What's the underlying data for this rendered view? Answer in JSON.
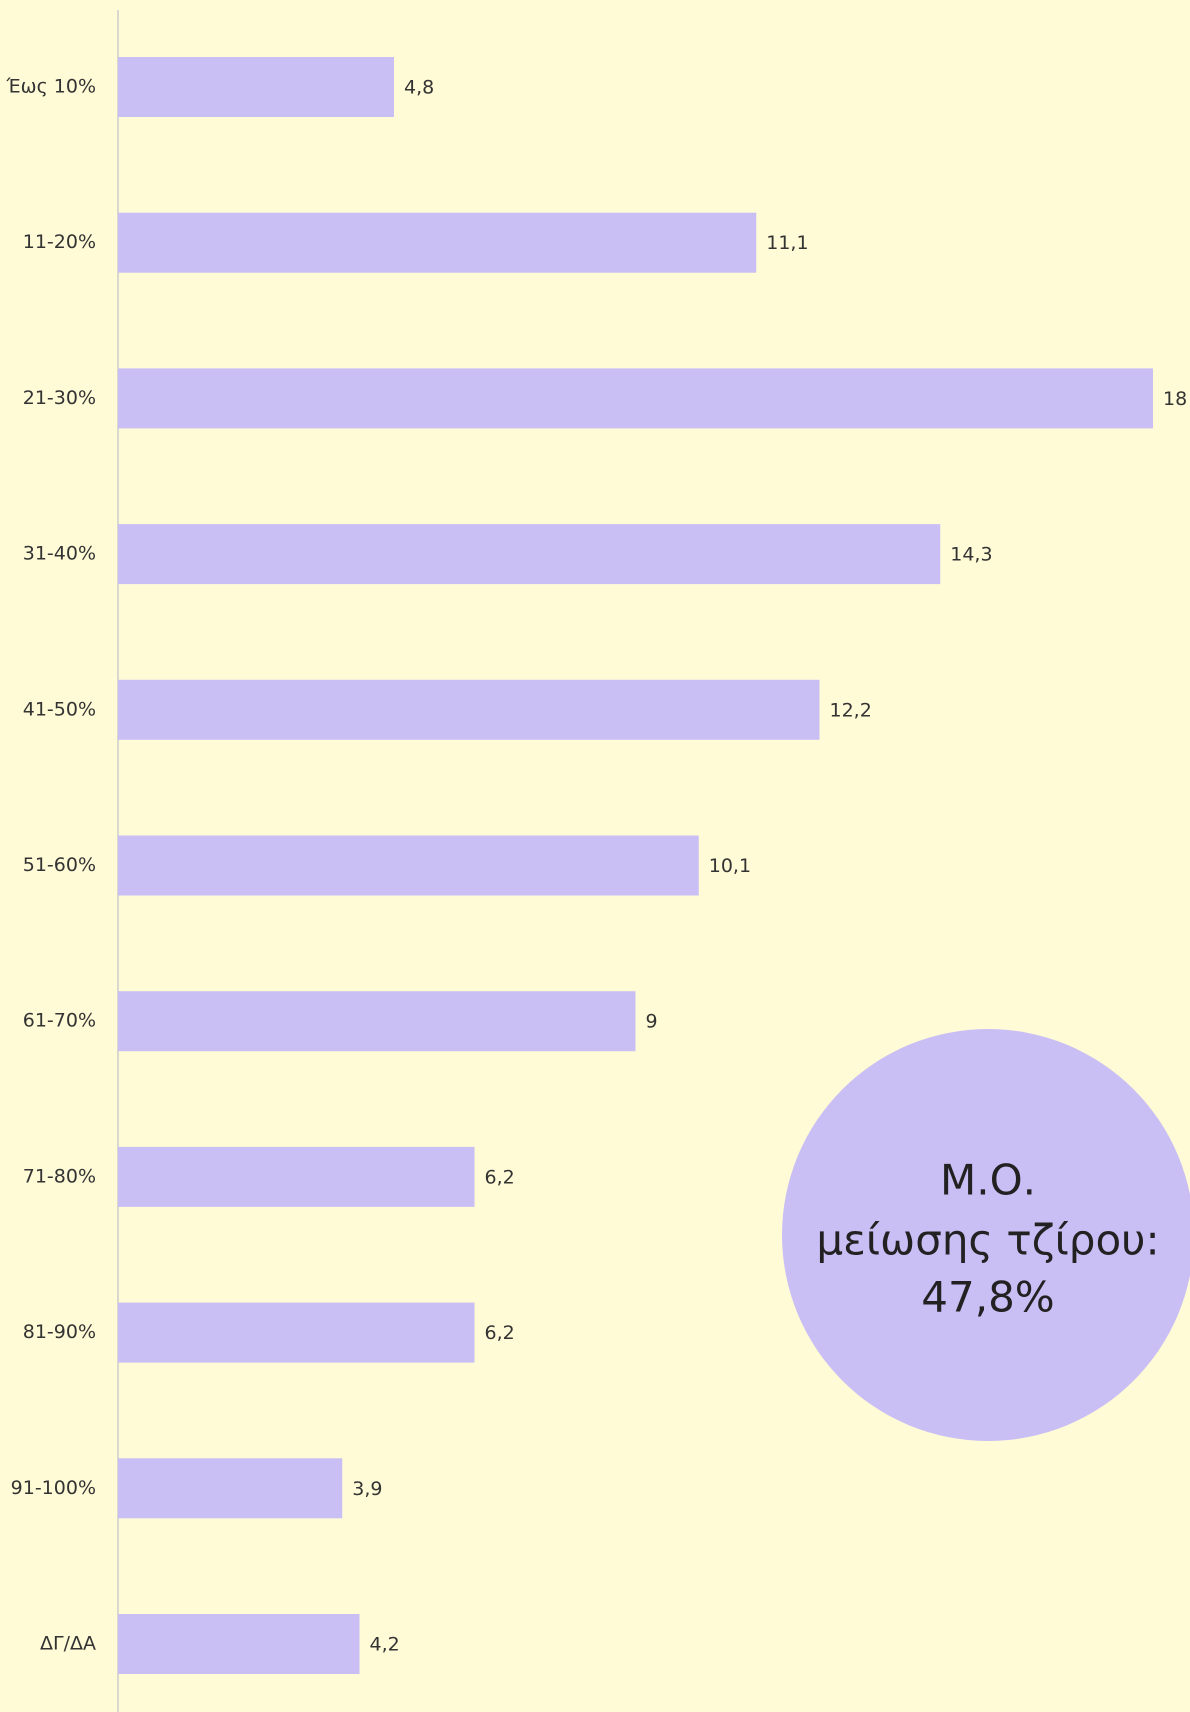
{
  "chart_data": {
    "type": "bar",
    "orientation": "horizontal",
    "categories": [
      "Έως 10%",
      "11-20%",
      "21-30%",
      "31-40%",
      "41-50%",
      "51-60%",
      "61-70%",
      "71-80%",
      "81-90%",
      "91-100%",
      "ΔΓ/ΔΑ"
    ],
    "values": [
      4.8,
      11.1,
      18,
      14.3,
      12.2,
      10.1,
      9,
      6.2,
      6.2,
      3.9,
      4.2
    ],
    "value_labels": [
      "4,8",
      "11,1",
      "18",
      "14,3",
      "12,2",
      "10,1",
      "9",
      "6,2",
      "6,2",
      "3,9",
      "4,2"
    ],
    "color": "#c9bff5",
    "annotation": [
      "Μ.Ο.",
      "μείωσης τζίρου:",
      "47,8%"
    ]
  }
}
